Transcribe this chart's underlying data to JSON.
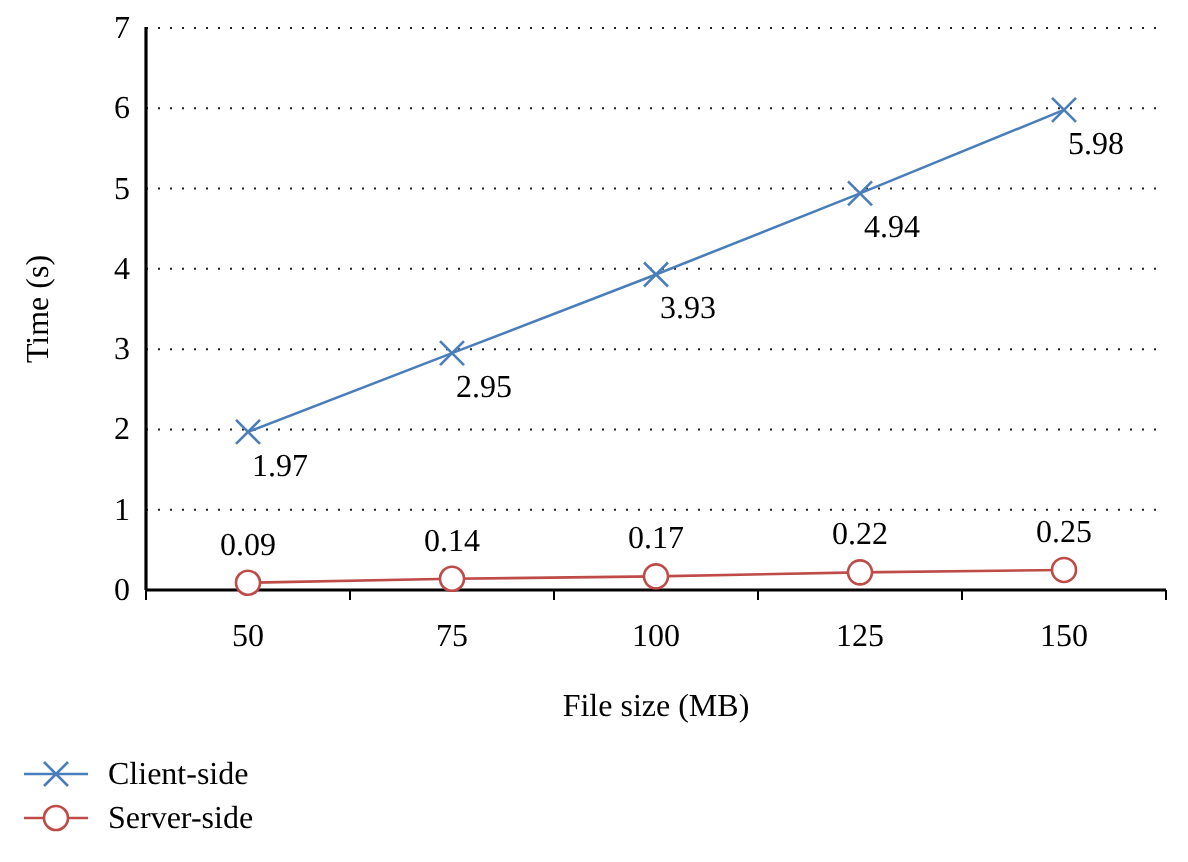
{
  "chart_data": {
    "type": "line",
    "xlabel": "File size (MB)",
    "ylabel": "Time (s)",
    "categories": [
      "50",
      "75",
      "100",
      "125",
      "150"
    ],
    "series": [
      {
        "name": "Client-side",
        "color": "#4a7ebb",
        "marker": "cross",
        "values": [
          1.97,
          2.95,
          3.93,
          4.94,
          5.98
        ]
      },
      {
        "name": "Server-side",
        "color": "#be4b48",
        "marker": "circle",
        "values": [
          0.09,
          0.14,
          0.17,
          0.22,
          0.25
        ]
      }
    ],
    "ylim": [
      0,
      7
    ],
    "yticks": [
      0,
      1,
      2,
      3,
      4,
      5,
      6,
      7
    ],
    "grid": "y",
    "data_labels": true,
    "legend": "bottom left"
  }
}
